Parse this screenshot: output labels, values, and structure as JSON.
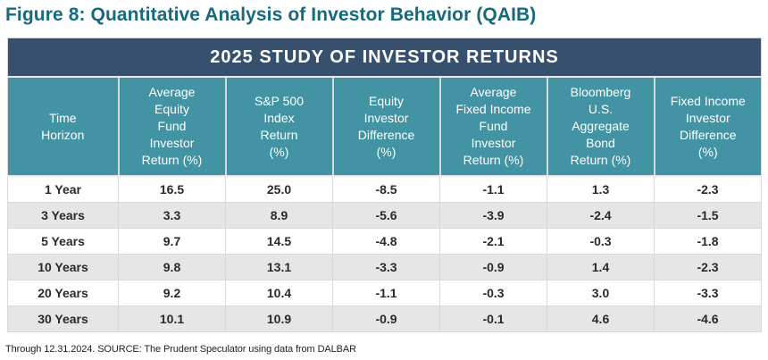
{
  "figure_title": "Figure 8: Quantitative Analysis of Investor Behavior (QAIB)",
  "footnote": "Through 12.31.2024. SOURCE: The Prudent Speculator using data from DALBAR",
  "colors": {
    "figure_title_teal": "#17697e",
    "table_title_navy": "#37506e",
    "column_header_teal": "#4294a4",
    "alt_row_gray": "#e6e6e6",
    "cell_border_gray": "#d9d9d9",
    "data_text": "#2b2a2a"
  },
  "chart_data": {
    "type": "table",
    "title": "2025 STUDY OF INVESTOR RETURNS",
    "columns": [
      "Time\nHorizon",
      "Average\nEquity\nFund\nInvestor\nReturn (%)",
      "S&P 500\nIndex\nReturn\n(%)",
      "Equity\nInvestor\nDifference\n(%)",
      "Average\nFixed Income\nFund\nInvestor\nReturn (%)",
      "Bloomberg\nU.S.\nAggregate\nBond\nReturn (%)",
      "Fixed Income\nInvestor\nDifference\n(%)"
    ],
    "rows": [
      [
        "1 Year",
        "16.5",
        "25.0",
        "-8.5",
        "-1.1",
        "1.3",
        "-2.3"
      ],
      [
        "3 Years",
        "3.3",
        "8.9",
        "-5.6",
        "-3.9",
        "-2.4",
        "-1.5"
      ],
      [
        "5 Years",
        "9.7",
        "14.5",
        "-4.8",
        "-2.1",
        "-0.3",
        "-1.8"
      ],
      [
        "10 Years",
        "9.8",
        "13.1",
        "-3.3",
        "-0.9",
        "1.4",
        "-2.3"
      ],
      [
        "20 Years",
        "9.2",
        "10.4",
        "-1.1",
        "-0.3",
        "3.0",
        "-3.3"
      ],
      [
        "30 Years",
        "10.1",
        "10.9",
        "-0.9",
        "-0.1",
        "4.6",
        "-4.6"
      ]
    ]
  }
}
